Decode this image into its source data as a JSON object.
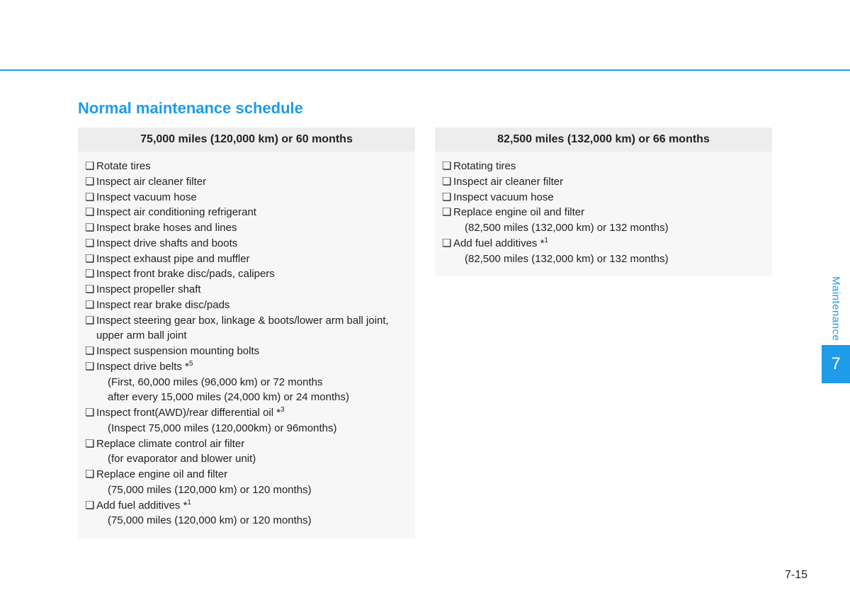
{
  "colors": {
    "accent": "#1e9be9",
    "header_bg": "#ededed",
    "body_bg": "#f7f7f7",
    "text": "#222222",
    "page_bg": "#ffffff"
  },
  "section_title": "Normal maintenance schedule",
  "side_tab": {
    "label": "Maintenance",
    "number": "7"
  },
  "page_number": "7-15",
  "bullet_glyph": "❏",
  "cards": [
    {
      "header": "75,000 miles (120,000 km) or 60 months",
      "items": [
        {
          "text": "Rotate tires"
        },
        {
          "text": "Inspect air cleaner filter"
        },
        {
          "text": "Inspect vacuum hose"
        },
        {
          "text": "Inspect air conditioning refrigerant"
        },
        {
          "text": "Inspect brake hoses and lines"
        },
        {
          "text": "Inspect drive shafts and boots"
        },
        {
          "text": "Inspect exhaust pipe and muffler"
        },
        {
          "text": "Inspect front brake disc/pads, calipers"
        },
        {
          "text": "Inspect propeller shaft"
        },
        {
          "text": "Inspect rear brake disc/pads"
        },
        {
          "text": "Inspect steering gear box, linkage & boots/lower arm ball joint, upper arm ball joint"
        },
        {
          "text": "Inspect suspension mounting bolts"
        },
        {
          "text": "Inspect drive belts *",
          "sup": "5",
          "subs": [
            "(First, 60,000 miles (96,000 km) or 72 months",
            " after every 15,000 miles (24,000 km) or 24 months)"
          ]
        },
        {
          "text": "Inspect front(AWD)/rear differential oil *",
          "sup": "3",
          "subs": [
            "(Inspect 75,000 miles (120,000km) or 96months)"
          ]
        },
        {
          "text": "Replace climate control air filter",
          "subs": [
            "(for evaporator and blower unit)"
          ]
        },
        {
          "text": "Replace engine oil and filter",
          "subs": [
            "(75,000 miles (120,000 km) or 120 months)"
          ]
        },
        {
          "text": "Add fuel additives *",
          "sup": "1",
          "subs": [
            "(75,000 miles (120,000 km) or 120 months)"
          ]
        }
      ]
    },
    {
      "header": "82,500 miles (132,000 km) or 66 months",
      "items": [
        {
          "text": "Rotating tires"
        },
        {
          "text": "Inspect air cleaner filter"
        },
        {
          "text": "Inspect vacuum hose"
        },
        {
          "text": "Replace engine oil and filter",
          "subs": [
            "(82,500 miles (132,000 km) or 132 months)"
          ]
        },
        {
          "text": "Add fuel additives *",
          "sup": "1",
          "subs": [
            "(82,500 miles (132,000 km) or 132 months)"
          ]
        }
      ]
    }
  ]
}
